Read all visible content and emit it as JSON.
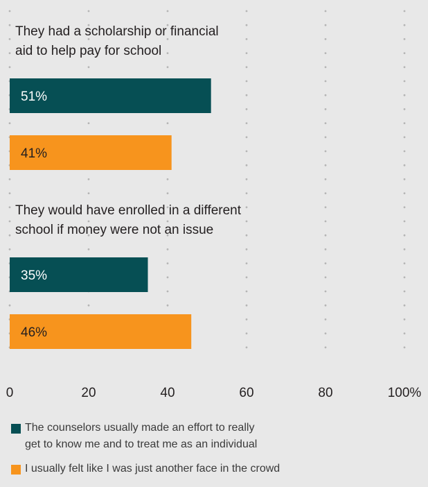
{
  "chart_data": {
    "type": "bar",
    "orientation": "horizontal",
    "categories": [
      "They had a scholarship or financial\naid to help pay for school",
      "They would have enrolled in a different\nschool if money were not an issue"
    ],
    "series": [
      {
        "name": "The counselors usually made an effort to really get to know me and to treat me as an individual",
        "values": [
          51,
          35
        ],
        "color": "#064f54"
      },
      {
        "name": "I usually felt like I was just another face in the crowd",
        "values": [
          41,
          46
        ],
        "color": "#f7941d"
      }
    ],
    "value_labels": [
      [
        "51%",
        "35%"
      ],
      [
        "41%",
        "46%"
      ]
    ],
    "xlim": [
      0,
      100
    ],
    "x_ticks": [
      "0",
      "20",
      "40",
      "60",
      "80",
      "100%"
    ],
    "grid": "dotted",
    "legend_placement": "bottom"
  },
  "legend": {
    "item1_line1": "The counselors usually made an effort to really",
    "item1_line2": "get to know me and to treat me as an individual",
    "item2": "I usually felt like I was just another face in the crowd"
  }
}
